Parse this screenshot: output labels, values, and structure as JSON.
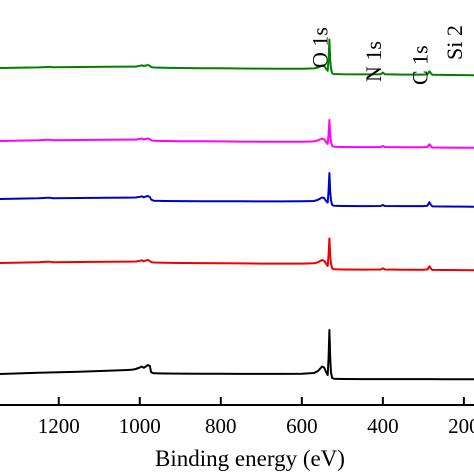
{
  "chart_data": {
    "type": "line",
    "xlabel": "Binding energy (eV)",
    "ylabel": "",
    "title": "",
    "x_reversed": true,
    "xlim": [
      1345,
      175
    ],
    "x_ticks": [
      1200,
      1000,
      800,
      600,
      400,
      200
    ],
    "x_tick_labels": [
      "1200",
      "1000",
      "800",
      "600",
      "400",
      "200"
    ],
    "y_ticks_shown": false,
    "annotations": [
      {
        "text": "O 1s",
        "x": 532
      },
      {
        "text": "N 1s",
        "x": 400
      },
      {
        "text": "C 1s",
        "x": 285
      },
      {
        "text": "Si 2",
        "x": 200
      }
    ],
    "series": [
      {
        "color": "#008000",
        "baseline": 0.0,
        "x": [
          1345,
          1250,
          1228,
          1220,
          1215,
          1150,
          1080,
          1010,
          1000,
          995,
          990,
          985,
          980,
          975,
          972,
          965,
          940,
          900,
          850,
          800,
          750,
          700,
          650,
          600,
          570,
          560,
          550,
          545,
          540,
          536,
          534,
          532,
          530,
          528,
          525,
          520,
          500,
          450,
          405,
          400,
          395,
          350,
          300,
          290,
          285,
          282,
          278,
          250,
          200,
          175
        ],
        "y": [
          0.8,
          0.92,
          1.0,
          1.03,
          0.94,
          1.0,
          1.05,
          1.08,
          1.22,
          1.35,
          1.2,
          1.3,
          1.38,
          1.25,
          0.98,
          0.9,
          0.85,
          0.8,
          0.77,
          0.74,
          0.71,
          0.68,
          0.66,
          0.66,
          0.72,
          0.9,
          1.3,
          1.2,
          0.65,
          0.25,
          2.6,
          6.5,
          2.4,
          0.7,
          -0.25,
          -0.4,
          -0.45,
          -0.48,
          -0.45,
          -0.1,
          -0.45,
          -0.52,
          -0.52,
          -0.45,
          0.15,
          -0.2,
          -0.55,
          -0.58,
          -0.62,
          -0.65
        ]
      },
      {
        "color": "#ff00ff",
        "baseline": 0.0,
        "x": [
          1345,
          1250,
          1228,
          1220,
          1215,
          1150,
          1080,
          1010,
          1000,
          995,
          990,
          985,
          980,
          975,
          972,
          965,
          940,
          900,
          850,
          800,
          750,
          700,
          650,
          600,
          570,
          560,
          550,
          545,
          540,
          536,
          534,
          532,
          530,
          528,
          525,
          520,
          500,
          450,
          405,
          400,
          395,
          350,
          300,
          290,
          285,
          282,
          278,
          250,
          200,
          175
        ],
        "y": [
          0.8,
          0.95,
          1.05,
          1.05,
          0.95,
          1.0,
          1.05,
          1.08,
          1.2,
          1.3,
          1.1,
          1.2,
          1.3,
          1.15,
          0.95,
          0.85,
          0.8,
          0.77,
          0.74,
          0.71,
          0.68,
          0.66,
          0.65,
          0.65,
          0.72,
          0.95,
          1.3,
          1.15,
          0.6,
          0.2,
          2.2,
          5.0,
          2.0,
          0.6,
          -0.2,
          -0.35,
          -0.4,
          -0.42,
          -0.4,
          -0.2,
          -0.4,
          -0.45,
          -0.45,
          -0.4,
          0.15,
          -0.2,
          -0.5,
          -0.52,
          -0.55,
          -0.57
        ]
      },
      {
        "color": "#0000cd",
        "baseline": 0.0,
        "x": [
          1345,
          1250,
          1228,
          1220,
          1215,
          1150,
          1080,
          1010,
          1000,
          995,
          990,
          985,
          980,
          975,
          972,
          965,
          940,
          900,
          850,
          800,
          750,
          700,
          650,
          600,
          570,
          560,
          550,
          545,
          540,
          536,
          534,
          532,
          530,
          528,
          525,
          520,
          500,
          450,
          405,
          400,
          395,
          350,
          300,
          290,
          285,
          282,
          278,
          250,
          200,
          175
        ],
        "y": [
          0.8,
          0.95,
          1.05,
          1.05,
          0.95,
          1.0,
          1.05,
          1.1,
          1.25,
          1.35,
          1.15,
          1.3,
          1.4,
          1.2,
          0.7,
          0.45,
          0.4,
          0.38,
          0.36,
          0.34,
          0.33,
          0.32,
          0.32,
          0.33,
          0.4,
          0.65,
          1.1,
          1.0,
          0.4,
          0.1,
          2.5,
          6.0,
          2.2,
          0.5,
          -0.4,
          -0.55,
          -0.6,
          -0.62,
          -0.6,
          -0.4,
          -0.6,
          -0.62,
          -0.62,
          -0.55,
          0.15,
          -0.3,
          -0.68,
          -0.7,
          -0.72,
          -0.75
        ]
      },
      {
        "color": "#ee0000",
        "baseline": 0.0,
        "x": [
          1345,
          1250,
          1228,
          1220,
          1215,
          1150,
          1080,
          1010,
          1000,
          995,
          990,
          985,
          980,
          975,
          972,
          965,
          940,
          900,
          850,
          800,
          750,
          700,
          650,
          600,
          570,
          560,
          550,
          545,
          540,
          536,
          534,
          532,
          530,
          528,
          525,
          520,
          500,
          450,
          405,
          400,
          395,
          350,
          300,
          290,
          285,
          282,
          278,
          250,
          200,
          175
        ],
        "y": [
          0.8,
          0.95,
          1.05,
          1.05,
          0.95,
          1.0,
          1.05,
          1.1,
          1.25,
          1.35,
          1.15,
          1.3,
          1.4,
          1.2,
          0.98,
          0.9,
          0.85,
          0.8,
          0.77,
          0.74,
          0.71,
          0.69,
          0.67,
          0.67,
          0.75,
          0.95,
          1.4,
          1.25,
          0.65,
          0.2,
          2.6,
          5.7,
          2.3,
          0.6,
          -0.3,
          -0.45,
          -0.5,
          -0.52,
          -0.5,
          -0.25,
          -0.5,
          -0.55,
          -0.55,
          -0.48,
          0.15,
          -0.25,
          -0.58,
          -0.6,
          -0.62,
          -0.65
        ]
      },
      {
        "color": "#000000",
        "baseline": 0.0,
        "x": [
          1345,
          1250,
          1150,
          1080,
          1020,
          1010,
          1000,
          995,
          990,
          985,
          980,
          975,
          972,
          965,
          940,
          900,
          850,
          800,
          750,
          700,
          650,
          600,
          570,
          560,
          550,
          545,
          540,
          536,
          534,
          532,
          530,
          528,
          525,
          520,
          500,
          450,
          400,
          350,
          300,
          290,
          285,
          280,
          250,
          200,
          175
        ],
        "y": [
          0.2,
          0.45,
          0.65,
          0.85,
          1.05,
          1.2,
          1.5,
          1.7,
          1.45,
          1.7,
          2.0,
          1.8,
          0.55,
          0.35,
          0.3,
          0.28,
          0.26,
          0.24,
          0.22,
          0.22,
          0.22,
          0.25,
          0.4,
          0.8,
          1.7,
          1.5,
          0.6,
          0.0,
          3.5,
          9.0,
          3.5,
          0.5,
          -0.6,
          -0.75,
          -0.8,
          -0.82,
          -0.82,
          -0.83,
          -0.83,
          -0.83,
          -0.83,
          -0.83,
          -0.84,
          -0.85,
          -0.85
        ]
      }
    ]
  }
}
